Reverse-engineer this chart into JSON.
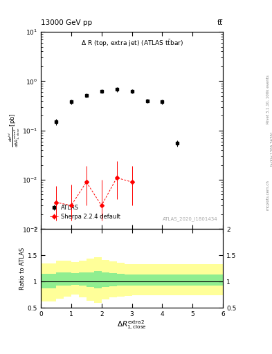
{
  "title_left": "13000 GeV pp",
  "title_right": "tt̅",
  "annotation": "Δ R (top, extra jet) (ATLAS t̅t̅bar)",
  "atlas_label": "ATLAS_2020_I1801434",
  "rivet_label": "Rivet 3.1.10, 100k events",
  "arxiv_label": "[arXiv:1306.3436]",
  "mcplots_label": "mcplots.cern.ch",
  "ylabel_ratio": "Ratio to ATLAS",
  "atlas_x": [
    0.5,
    1.0,
    1.5,
    2.0,
    2.5,
    3.0,
    3.5,
    4.0,
    4.5
  ],
  "atlas_y": [
    0.15,
    0.38,
    0.52,
    0.62,
    0.68,
    0.62,
    0.4,
    0.38,
    0.055
  ],
  "atlas_yerr": [
    0.02,
    0.04,
    0.05,
    0.06,
    0.07,
    0.06,
    0.04,
    0.04,
    0.008
  ],
  "sherpa_x": [
    0.5,
    1.0,
    1.5,
    2.0,
    2.5,
    3.0
  ],
  "sherpa_y": [
    0.0035,
    0.003,
    0.009,
    0.003,
    0.011,
    0.009
  ],
  "sherpa_yerr_lo": [
    0.002,
    0.0015,
    0.006,
    0.0015,
    0.007,
    0.006
  ],
  "sherpa_yerr_hi": [
    0.004,
    0.005,
    0.01,
    0.007,
    0.013,
    0.01
  ],
  "ratio_x_edges": [
    0.0,
    0.5,
    0.75,
    1.0,
    1.25,
    1.5,
    1.75,
    2.0,
    2.25,
    2.5,
    2.75,
    3.0,
    6.0
  ],
  "ratio_green_lo": [
    0.88,
    0.92,
    0.93,
    0.94,
    0.93,
    0.9,
    0.88,
    0.9,
    0.91,
    0.92,
    0.92,
    0.93,
    0.93
  ],
  "ratio_green_hi": [
    1.15,
    1.17,
    1.17,
    1.16,
    1.17,
    1.18,
    1.2,
    1.17,
    1.16,
    1.15,
    1.14,
    1.14,
    1.14
  ],
  "ratio_yellow_lo": [
    0.62,
    0.68,
    0.72,
    0.75,
    0.7,
    0.64,
    0.6,
    0.67,
    0.7,
    0.72,
    0.73,
    0.74,
    0.74
  ],
  "ratio_yellow_hi": [
    1.35,
    1.4,
    1.4,
    1.37,
    1.4,
    1.44,
    1.47,
    1.41,
    1.39,
    1.36,
    1.34,
    1.34,
    1.34
  ],
  "xlim": [
    0,
    6
  ],
  "ylim_main": [
    0.001,
    10
  ],
  "ylim_ratio": [
    0.5,
    2.0
  ],
  "color_atlas": "black",
  "color_sherpa": "red",
  "color_green": "#90EE90",
  "color_yellow": "#FFFF99",
  "background_color": "white"
}
